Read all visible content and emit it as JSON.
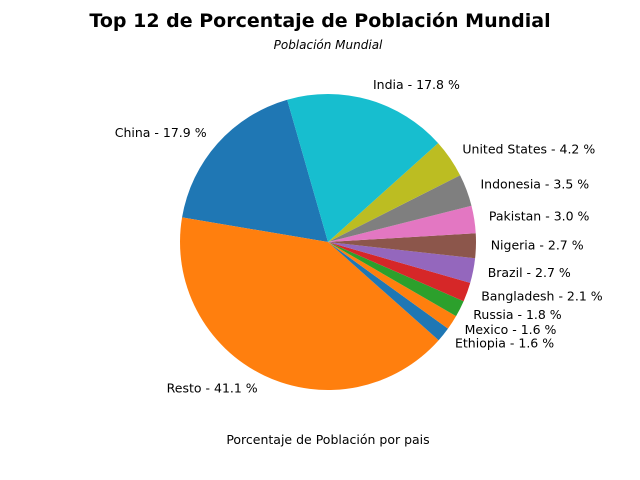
{
  "chart_data": {
    "type": "pie",
    "title": "Top 12 de Porcentaje de Población Mundial",
    "subtitle": "Población Mundial",
    "xlabel": "Porcentaje de Población por pais",
    "start_angle_deg": 106,
    "direction": "counterclockwise",
    "slices": [
      {
        "label": "China - 17.9 %",
        "value": 17.9,
        "color": "#1f77b4"
      },
      {
        "label": "Resto - 41.1 %",
        "value": 41.1,
        "color": "#ff7f0e"
      },
      {
        "label": "Ethiopia - 1.6 %",
        "value": 1.6,
        "color": "#1f77b4"
      },
      {
        "label": "Mexico - 1.6 %",
        "value": 1.6,
        "color": "#ff7f0e"
      },
      {
        "label": "Russia - 1.8 %",
        "value": 1.8,
        "color": "#2ca02c"
      },
      {
        "label": "Bangladesh - 2.1 %",
        "value": 2.1,
        "color": "#d62728"
      },
      {
        "label": "Brazil - 2.7 %",
        "value": 2.7,
        "color": "#9467bd"
      },
      {
        "label": "Nigeria - 2.7 %",
        "value": 2.7,
        "color": "#8c564b"
      },
      {
        "label": "Pakistan - 3.0 %",
        "value": 3.0,
        "color": "#e377c2"
      },
      {
        "label": "Indonesia - 3.5 %",
        "value": 3.5,
        "color": "#7f7f7f"
      },
      {
        "label": "United States - 4.2 %",
        "value": 4.2,
        "color": "#bcbd22"
      },
      {
        "label": "India - 17.8 %",
        "value": 17.8,
        "color": "#17becf"
      }
    ]
  }
}
